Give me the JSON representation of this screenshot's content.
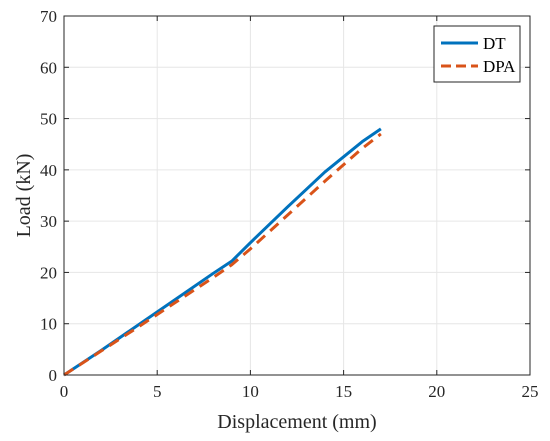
{
  "chart_data": {
    "type": "line",
    "title": "",
    "xlabel": "Displacement (mm)",
    "ylabel": "Load (kN)",
    "xlim": [
      0,
      25
    ],
    "ylim": [
      0,
      70
    ],
    "xticks": [
      0,
      5,
      10,
      15,
      20,
      25
    ],
    "yticks": [
      0,
      10,
      20,
      30,
      40,
      50,
      60,
      70
    ],
    "grid": true,
    "legend_position": "top-right",
    "series": [
      {
        "name": "DT",
        "color": "#0072BD",
        "style": "solid",
        "x": [
          0,
          2,
          4,
          6,
          8,
          9,
          10,
          12,
          14,
          16,
          17
        ],
        "y": [
          0,
          4.8,
          9.8,
          14.8,
          19.8,
          22.2,
          25.8,
          32.8,
          39.6,
          45.5,
          48
        ]
      },
      {
        "name": "DPA",
        "color": "#D95319",
        "style": "dashed",
        "x": [
          0,
          2,
          4,
          6,
          8,
          9,
          10,
          12,
          14,
          16,
          17
        ],
        "y": [
          0,
          4.7,
          9.4,
          14.2,
          19.0,
          21.5,
          24.6,
          31.2,
          37.8,
          44.2,
          47
        ]
      }
    ]
  }
}
